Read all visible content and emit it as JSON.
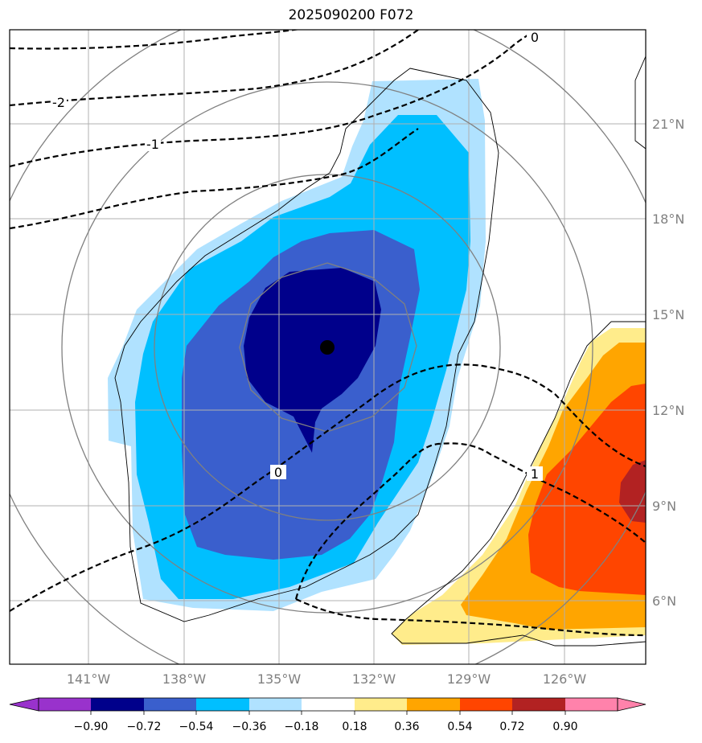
{
  "title": "2025090200 F072",
  "lon_labels": [
    "141°W",
    "138°W",
    "135°W",
    "132°W",
    "129°W",
    "126°W"
  ],
  "lat_labels": [
    "21°N",
    "18°N",
    "15°N",
    "12°N",
    "9°N",
    "6°N"
  ],
  "contour_labels": [
    "-2",
    "-1",
    "0",
    "0",
    "1"
  ],
  "colorbar": {
    "ticks": [
      "−0.90",
      "−0.72",
      "−0.54",
      "−0.36",
      "−0.18",
      "0.18",
      "0.36",
      "0.54",
      "0.72",
      "0.90"
    ],
    "colors": [
      "#9932cc",
      "#00008b",
      "#3a5fcd",
      "#00bfff",
      "#b0e2ff",
      "#ffffff",
      "#ffec8b",
      "#ffa500",
      "#ff4500",
      "#b22222",
      "#ff82ab"
    ]
  },
  "colors": {
    "grid": "#b0b0b0",
    "geo_lines": "#808080",
    "neg_strong": "#00008b",
    "neg_mid": "#3a5fcd",
    "neg_light": "#00bfff",
    "neg_faint": "#b0e2ff",
    "pos_faint": "#ffec8b",
    "pos_light": "#ffa500",
    "pos_mid": "#ff4500",
    "pos_strong": "#b22222"
  },
  "storm_marker": "filled-circle"
}
